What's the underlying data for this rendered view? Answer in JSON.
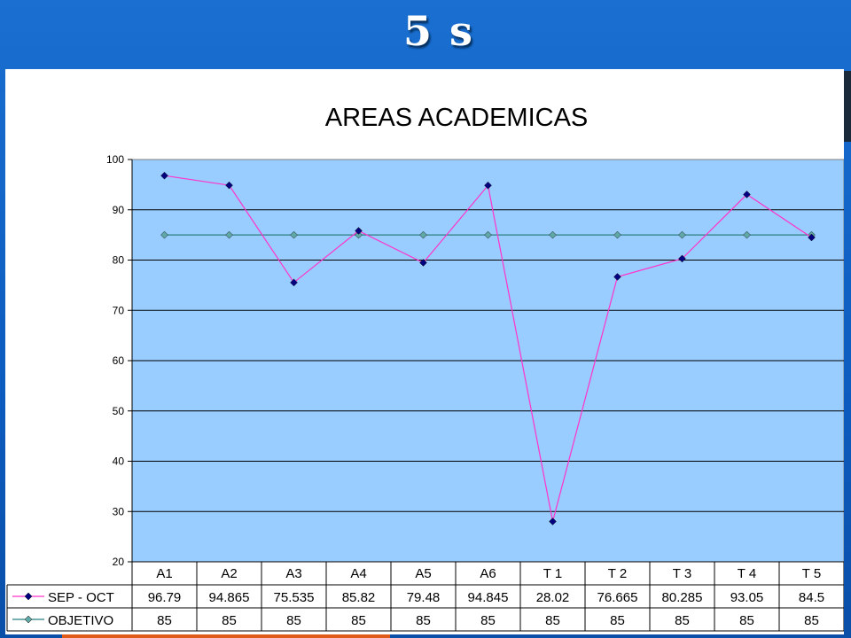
{
  "slide": {
    "title": "5 s"
  },
  "chart_data": {
    "type": "line",
    "title": "AREAS ACADEMICAS",
    "categories": [
      "A1",
      "A2",
      "A3",
      "A4",
      "A5",
      "A6",
      "T 1",
      "T 2",
      "T 3",
      "T 4",
      "T 5"
    ],
    "series": [
      {
        "name": "SEP  -  OCT",
        "values": [
          96.79,
          94.865,
          75.535,
          85.82,
          79.48,
          94.845,
          28.02,
          76.665,
          80.285,
          93.05,
          84.5
        ],
        "labels": [
          "96.79",
          "94.865",
          "75.535",
          "85.82",
          "79.48",
          "94.845",
          "28.02",
          "76.665",
          "80.285",
          "93.05",
          "84.5"
        ],
        "color": "#ff33cc",
        "marker_color": "#000080"
      },
      {
        "name": "OBJETIVO",
        "values": [
          85,
          85,
          85,
          85,
          85,
          85,
          85,
          85,
          85,
          85,
          85
        ],
        "labels": [
          "85",
          "85",
          "85",
          "85",
          "85",
          "85",
          "85",
          "85",
          "85",
          "85",
          "85"
        ],
        "color": "#2a7f7f",
        "marker_color": "#5fa8a8"
      }
    ],
    "ylim": [
      20,
      100
    ],
    "yticks": [
      "100",
      "90",
      "80",
      "70",
      "60",
      "50",
      "40",
      "30",
      "20"
    ],
    "grid": true,
    "plot_bg": "#99ccff",
    "layout": "data-table-below"
  }
}
